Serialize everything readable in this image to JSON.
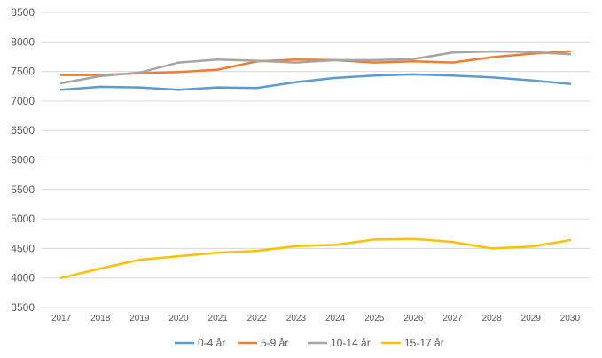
{
  "chart_data": {
    "type": "line",
    "title": "",
    "xlabel": "",
    "ylabel": "",
    "ylim": [
      3500,
      8500
    ],
    "yticks": [
      3500,
      4000,
      4500,
      5000,
      5500,
      6000,
      6500,
      7000,
      7500,
      8000,
      8500
    ],
    "grid": "horizontal",
    "legend_position": "bottom",
    "categories": [
      "2017",
      "2018",
      "2019",
      "2020",
      "2021",
      "2022",
      "2023",
      "2024",
      "2025",
      "2026",
      "2027",
      "2028",
      "2029",
      "2030"
    ],
    "series": [
      {
        "name": "0-4 år",
        "color": "#5B9BD5",
        "values": [
          7190,
          7240,
          7230,
          7190,
          7230,
          7220,
          7320,
          7390,
          7430,
          7450,
          7430,
          7400,
          7350,
          7290
        ]
      },
      {
        "name": "5-9 år",
        "color": "#ED7D31",
        "values": [
          7440,
          7440,
          7470,
          7490,
          7530,
          7670,
          7700,
          7690,
          7650,
          7670,
          7650,
          7740,
          7800,
          7840
        ]
      },
      {
        "name": "10-14 år",
        "color": "#A5A5A5",
        "values": [
          7300,
          7420,
          7480,
          7650,
          7700,
          7680,
          7650,
          7690,
          7690,
          7710,
          7820,
          7840,
          7830,
          7790
        ]
      },
      {
        "name": "15-17 år",
        "color": "#FFC000",
        "values": [
          4000,
          4160,
          4310,
          4370,
          4430,
          4460,
          4540,
          4560,
          4650,
          4660,
          4610,
          4500,
          4530,
          4640
        ]
      }
    ]
  }
}
